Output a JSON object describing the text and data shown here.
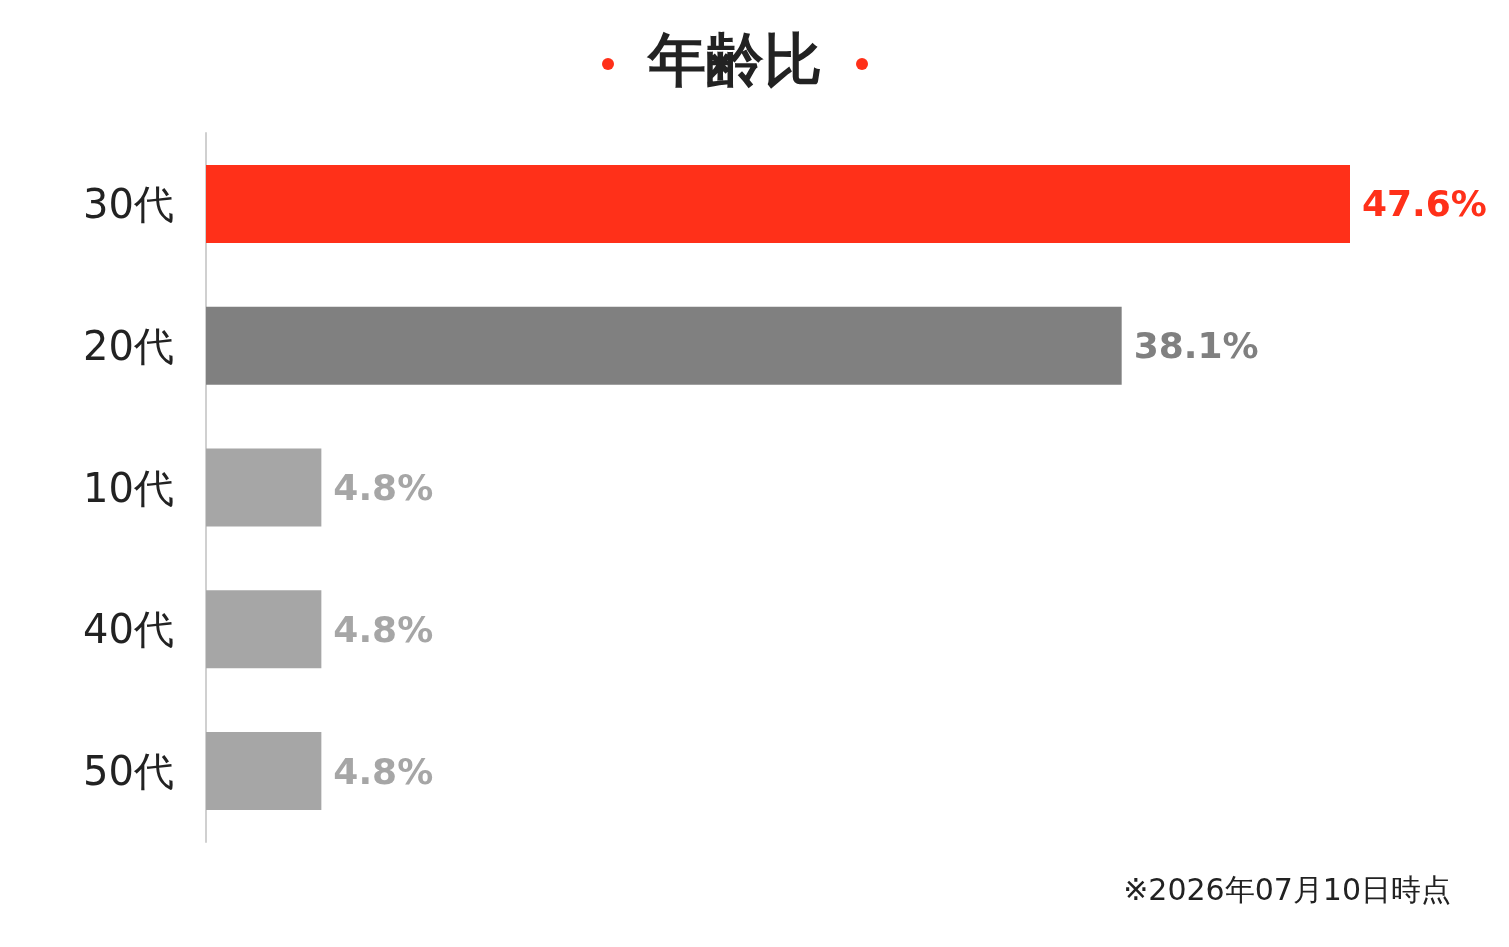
{
  "chart_data": {
    "type": "bar",
    "orientation": "horizontal",
    "title": "年齢比",
    "categories": [
      "30代",
      "20代",
      "10代",
      "40代",
      "50代"
    ],
    "values": [
      47.6,
      38.1,
      4.8,
      4.8,
      4.8
    ],
    "value_labels": [
      "47.6%",
      "38.1%",
      "4.8%",
      "4.8%",
      "4.8%"
    ],
    "colors": [
      "#ff3019",
      "#808080",
      "#a6a6a6",
      "#a6a6a6",
      "#a6a6a6"
    ],
    "annotations": [
      "※2026年07月10日時点"
    ]
  }
}
